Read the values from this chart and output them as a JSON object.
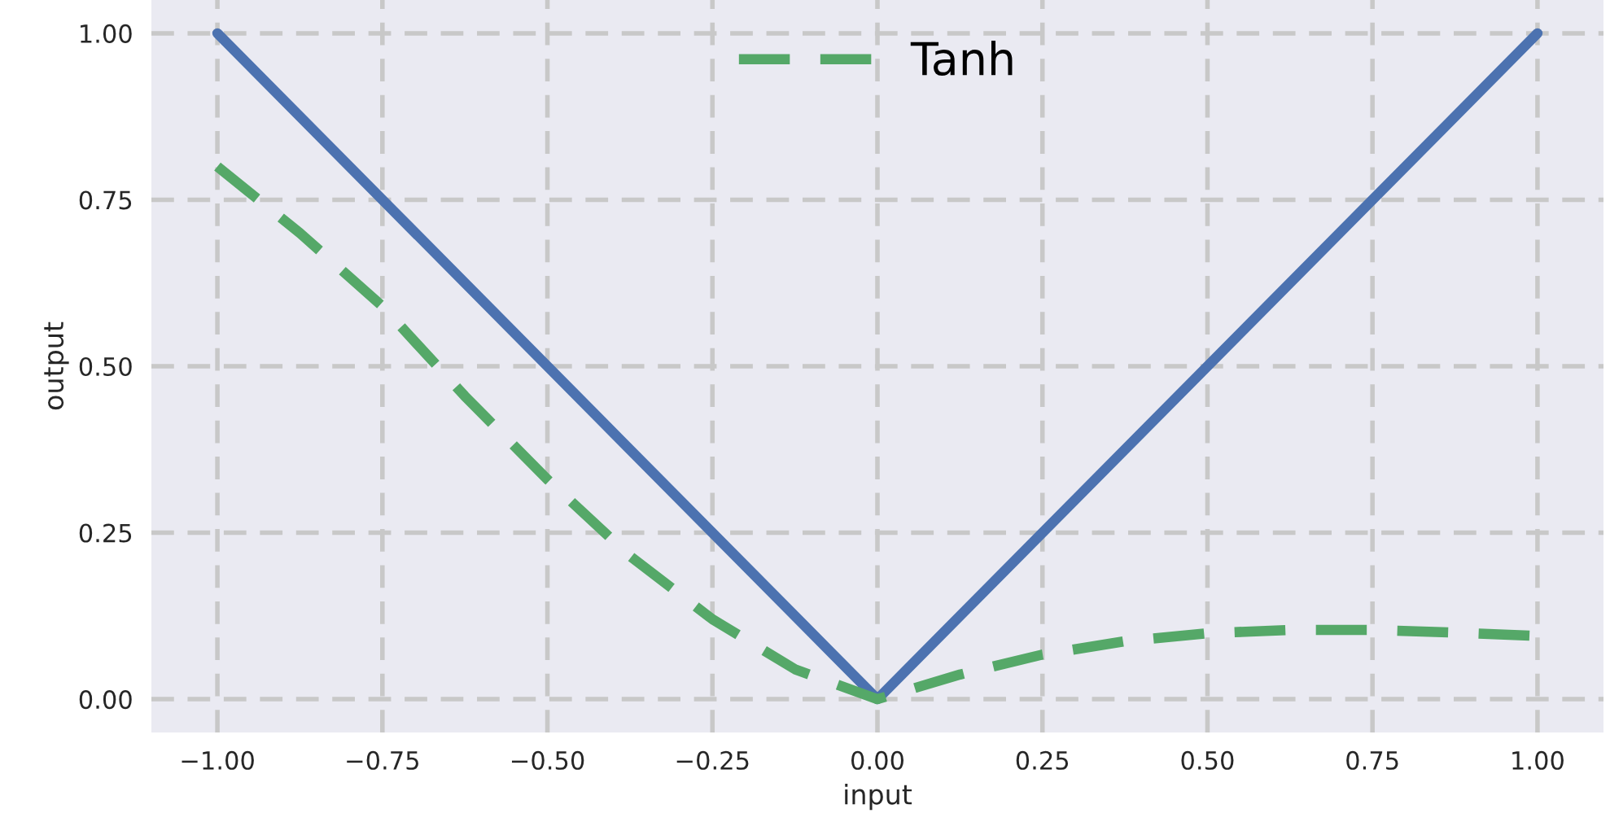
{
  "chart_data": {
    "type": "line",
    "xlabel": "input",
    "ylabel": "output",
    "xlim": [
      -1.1,
      1.1
    ],
    "ylim": [
      -0.05,
      1.05
    ],
    "xticks": [
      {
        "value": -1,
        "label": "−1.00"
      },
      {
        "value": -0.75,
        "label": "−0.75"
      },
      {
        "value": -0.5,
        "label": "−0.50"
      },
      {
        "value": -0.25,
        "label": "−0.25"
      },
      {
        "value": 0,
        "label": "0.00"
      },
      {
        "value": 0.25,
        "label": "0.25"
      },
      {
        "value": 0.5,
        "label": "0.50"
      },
      {
        "value": 0.75,
        "label": "0.75"
      },
      {
        "value": 1,
        "label": "1.00"
      }
    ],
    "yticks": [
      {
        "value": 0,
        "label": "0.00"
      },
      {
        "value": 0.25,
        "label": "0.25"
      },
      {
        "value": 0.5,
        "label": "0.50"
      },
      {
        "value": 0.75,
        "label": "0.75"
      },
      {
        "value": 1,
        "label": "1.00"
      }
    ],
    "grid": true,
    "legend": "top",
    "marker": "none",
    "series": [
      {
        "color": "#4c72b0",
        "line_style": "solid",
        "x": [
          -1,
          0,
          1
        ],
        "values": [
          1,
          0,
          1
        ]
      },
      {
        "name": "Tanh",
        "color": "#55a868",
        "line_style": "dashed",
        "x": [
          -1,
          -0.875,
          -0.75,
          -0.625,
          -0.5,
          -0.375,
          -0.25,
          -0.125,
          0,
          0.125,
          0.25,
          0.375,
          0.5,
          0.625,
          0.75,
          0.875,
          1
        ],
        "values": [
          0.8,
          0.7,
          0.59,
          0.455,
          0.33,
          0.215,
          0.12,
          0.045,
          0,
          0.037,
          0.067,
          0.087,
          0.099,
          0.104,
          0.104,
          0.1,
          0.095
        ]
      }
    ]
  }
}
